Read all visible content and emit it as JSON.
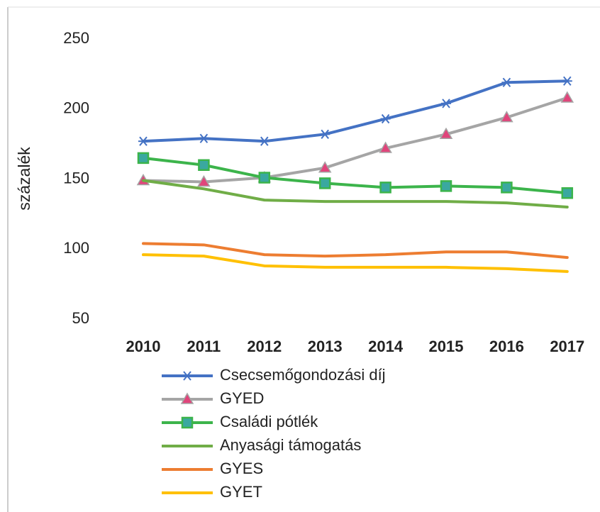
{
  "chart_data": {
    "type": "line",
    "y_label": "százalék",
    "categories": [
      "2010",
      "2011",
      "2012",
      "2013",
      "2014",
      "2015",
      "2016",
      "2017"
    ],
    "series": [
      {
        "name": "Csecsemőgondozási díj",
        "color": "#4472c4",
        "marker": "asterisk",
        "marker_color": "#4472c4",
        "values": [
          177,
          179,
          177,
          182,
          193,
          204,
          219,
          220
        ]
      },
      {
        "name": "GYED",
        "color": "#a5a5a5",
        "marker": "triangle",
        "marker_color": "#e0457b",
        "values": [
          149,
          148,
          151,
          158,
          172,
          182,
          194,
          208
        ]
      },
      {
        "name": "Családi pótlék",
        "color": "#3cb44b",
        "marker": "square",
        "marker_color": "#3aa8a0",
        "values": [
          165,
          160,
          151,
          147,
          144,
          145,
          144,
          140
        ]
      },
      {
        "name": "Anyasági támogatás",
        "color": "#70ad47",
        "values": [
          149,
          143,
          135,
          134,
          134,
          134,
          133,
          130
        ]
      },
      {
        "name": "GYES",
        "color": "#ed7d31",
        "values": [
          104,
          103,
          96,
          95,
          96,
          98,
          98,
          94
        ]
      },
      {
        "name": "GYET",
        "color": "#ffc000",
        "values": [
          96,
          95,
          88,
          87,
          87,
          87,
          86,
          84
        ]
      }
    ],
    "ylim": [
      50,
      250
    ],
    "yticks": [
      50,
      100,
      150,
      200,
      250
    ],
    "grid": false
  }
}
